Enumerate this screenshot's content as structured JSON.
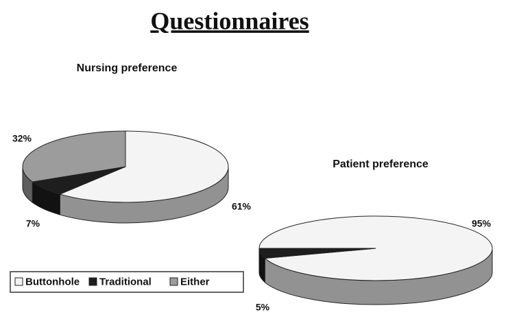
{
  "title": "Questionnaires",
  "chart_data": [
    {
      "type": "pie",
      "title": "Nursing preference",
      "categories": [
        "Buttonhole",
        "Traditional",
        "Either"
      ],
      "values": [
        61,
        7,
        32
      ],
      "value_labels": [
        "61%",
        "7%",
        "32%"
      ],
      "colors": [
        "#f4f4f4",
        "#1e1e1e",
        "#9c9c9c"
      ]
    },
    {
      "type": "pie",
      "title": "Patient preference",
      "categories": [
        "Buttonhole",
        "Traditional"
      ],
      "values": [
        95,
        5
      ],
      "value_labels": [
        "95%",
        "5%"
      ],
      "colors": [
        "#f4f4f4",
        "#1e1e1e"
      ]
    }
  ]
}
